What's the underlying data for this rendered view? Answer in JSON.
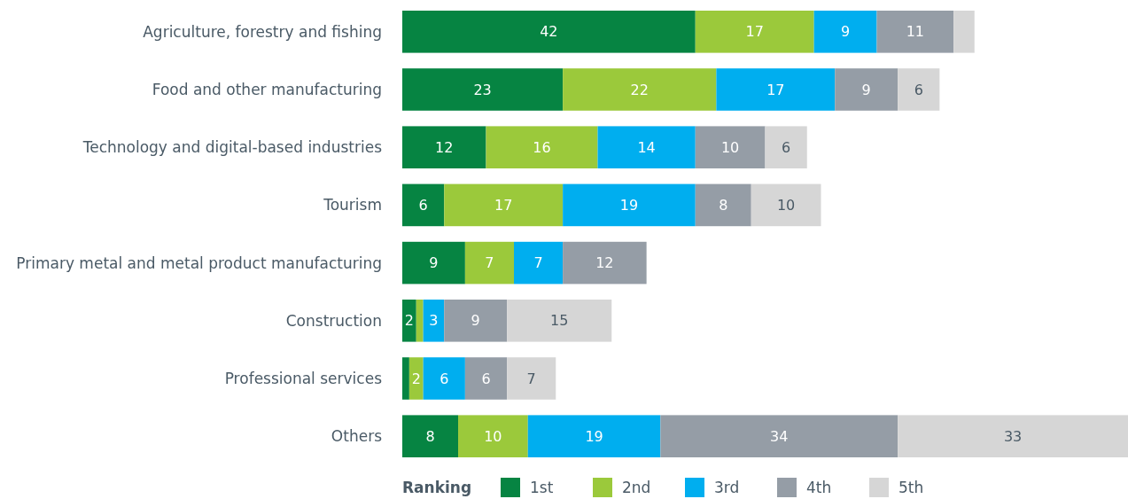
{
  "chart_data": {
    "type": "bar",
    "orientation": "horizontal",
    "stacked": true,
    "legend": "bottom",
    "legend_title": "Ranking",
    "categories": [
      "Agriculture, forestry and fishing",
      "Food and other manufacturing",
      "Technology and digital-based industries",
      "Tourism",
      "Primary metal and metal product manufacturing",
      "Construction",
      "Professional services",
      "Others"
    ],
    "series": [
      {
        "name": "1st",
        "color": "#068442",
        "values": [
          42,
          23,
          12,
          6,
          9,
          2,
          1,
          8
        ],
        "value_labels": [
          "42",
          "23",
          "12",
          "6",
          "9",
          "2",
          null,
          "8"
        ]
      },
      {
        "name": "2nd",
        "color": "#9bc93b",
        "values": [
          17,
          22,
          16,
          17,
          7,
          1,
          2,
          10
        ],
        "value_labels": [
          "17",
          "22",
          "16",
          "17",
          "7",
          null,
          "2",
          "10"
        ]
      },
      {
        "name": "3rd",
        "color": "#00aeef",
        "values": [
          9,
          17,
          14,
          19,
          7,
          3,
          6,
          19
        ],
        "value_labels": [
          "9",
          "17",
          "14",
          "19",
          "7",
          "3",
          "6",
          "19"
        ]
      },
      {
        "name": "4th",
        "color": "#959da6",
        "values": [
          11,
          9,
          10,
          8,
          12,
          9,
          6,
          34
        ],
        "value_labels": [
          "11",
          "9",
          "10",
          "8",
          "12",
          "9",
          "6",
          "34"
        ]
      },
      {
        "name": "5th",
        "color": "#d6d6d6",
        "values": [
          3,
          6,
          6,
          10,
          null,
          15,
          7,
          33
        ],
        "value_labels": [
          null,
          "6",
          "6",
          "10",
          null,
          "15",
          "7",
          "33"
        ]
      }
    ]
  }
}
